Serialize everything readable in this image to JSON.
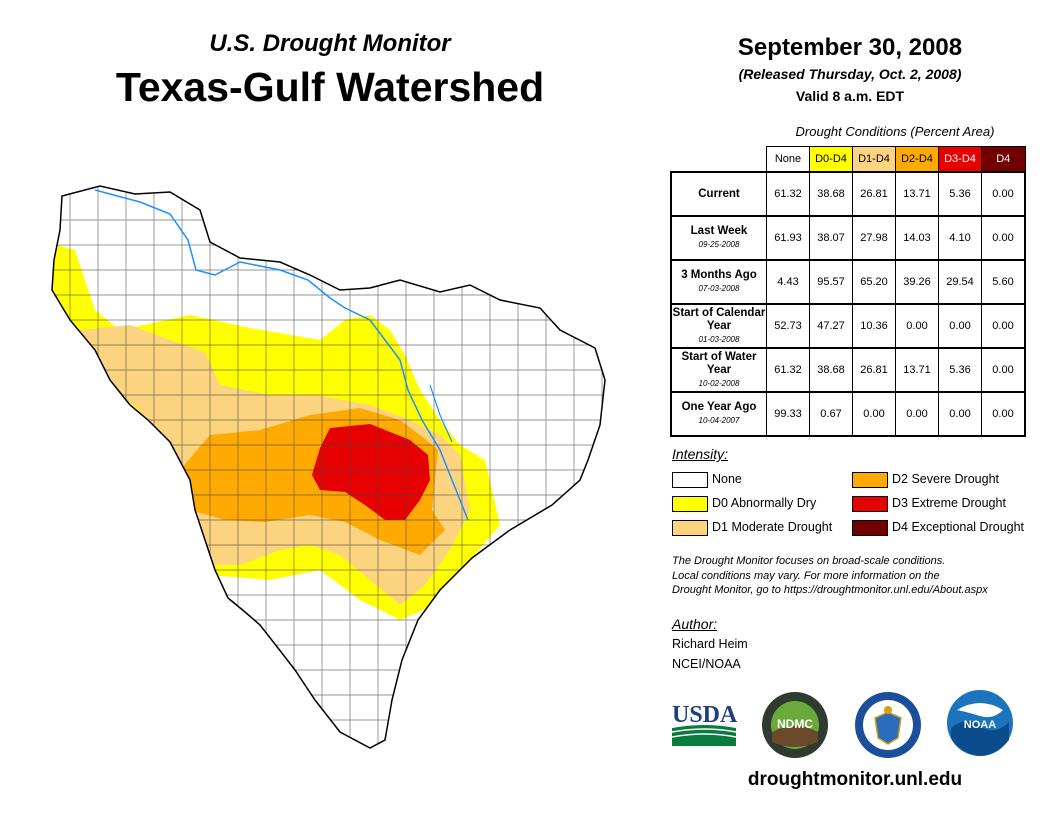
{
  "header": {
    "supertitle": "U.S. Drought Monitor",
    "title": "Texas-Gulf Watershed",
    "date": "September 30, 2008",
    "released": "(Released Thursday, Oct. 2, 2008)",
    "valid": "Valid 8 a.m. EDT"
  },
  "table": {
    "caption": "Drought Conditions (Percent Area)",
    "columns": [
      "None",
      "D0-D4",
      "D1-D4",
      "D2-D4",
      "D3-D4",
      "D4"
    ],
    "column_colors": [
      "#ffffff",
      "#ffff00",
      "#fcd37f",
      "#ffaa00",
      "#e60000",
      "#730000"
    ],
    "rows": [
      {
        "label": "Current",
        "date": "",
        "values": [
          "61.32",
          "38.68",
          "26.81",
          "13.71",
          "5.36",
          "0.00"
        ]
      },
      {
        "label": "Last Week",
        "date": "09-25-2008",
        "values": [
          "61.93",
          "38.07",
          "27.98",
          "14.03",
          "4.10",
          "0.00"
        ]
      },
      {
        "label": "3 Months Ago",
        "date": "07-03-2008",
        "values": [
          "4.43",
          "95.57",
          "65.20",
          "39.26",
          "29.54",
          "5.60"
        ]
      },
      {
        "label": "Start of Calendar Year",
        "date": "01-03-2008",
        "values": [
          "52.73",
          "47.27",
          "10.36",
          "0.00",
          "0.00",
          "0.00"
        ]
      },
      {
        "label": "Start of Water Year",
        "date": "10-02-2008",
        "values": [
          "61.32",
          "38.68",
          "26.81",
          "13.71",
          "5.36",
          "0.00"
        ]
      },
      {
        "label": "One Year Ago",
        "date": "10-04-2007",
        "values": [
          "99.33",
          "0.67",
          "0.00",
          "0.00",
          "0.00",
          "0.00"
        ]
      }
    ]
  },
  "legend": {
    "heading": "Intensity:",
    "items": [
      {
        "label": "None",
        "color": "#ffffff"
      },
      {
        "label": "D0 Abnormally Dry",
        "color": "#ffff00"
      },
      {
        "label": "D1 Moderate Drought",
        "color": "#fcd37f"
      },
      {
        "label": "D2 Severe Drought",
        "color": "#ffaa00"
      },
      {
        "label": "D3 Extreme Drought",
        "color": "#e60000"
      },
      {
        "label": "D4 Exceptional Drought",
        "color": "#730000"
      }
    ]
  },
  "note": {
    "line1": "The Drought Monitor focuses on broad-scale conditions.",
    "line2": "Local conditions may vary. For more information on the",
    "line3": "Drought Monitor, go to https://droughtmonitor.unl.edu/About.aspx"
  },
  "author": {
    "heading": "Author:",
    "name": "Richard Heim",
    "org": "NCEI/NOAA"
  },
  "logos": {
    "usda": "USDA",
    "ndmc": "NDMC",
    "noaa": "NOAA"
  },
  "footer": {
    "url": "droughtmonitor.unl.edu"
  }
}
